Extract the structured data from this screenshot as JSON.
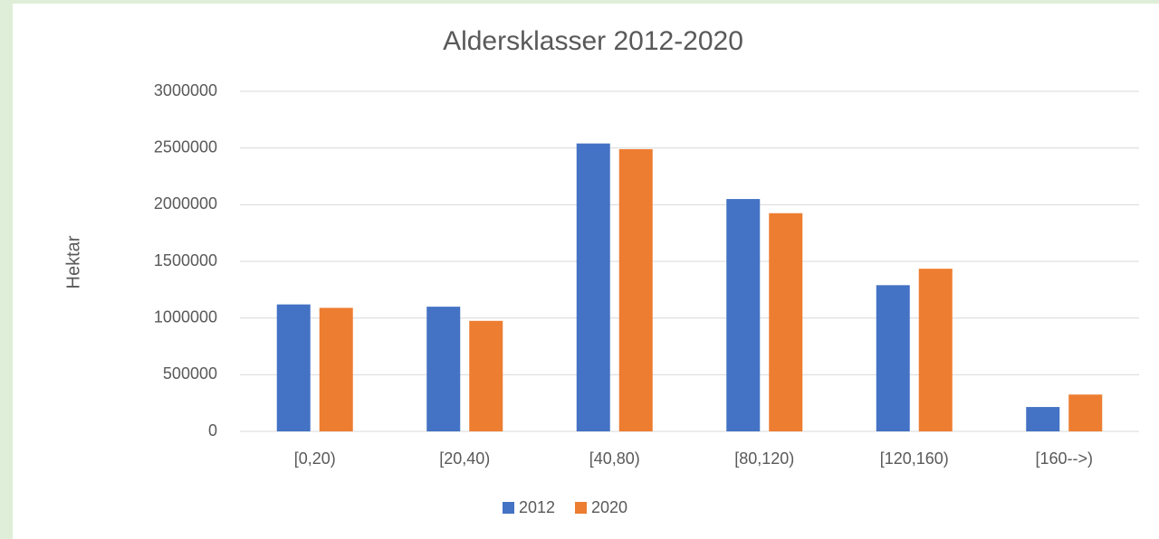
{
  "chart_data": {
    "type": "bar",
    "title": "Aldersklasser 2012-2020",
    "y_label": "Hektar",
    "categories": [
      "[0,20)",
      "[20,40)",
      "[40,80)",
      "[80,120)",
      "[120,160)",
      "[160-->)"
    ],
    "series": [
      {
        "name": "2012",
        "color": "#4472c4",
        "values": [
          1120000,
          1100000,
          2540000,
          2050000,
          1290000,
          215000
        ]
      },
      {
        "name": "2020",
        "color": "#ed7d31",
        "values": [
          1090000,
          975000,
          2490000,
          1925000,
          1435000,
          325000
        ]
      }
    ],
    "ylim": [
      0,
      3000000
    ],
    "yticks": [
      0,
      500000,
      1000000,
      1500000,
      2000000,
      2500000,
      3000000
    ],
    "grid": true,
    "legend": "bottom"
  }
}
